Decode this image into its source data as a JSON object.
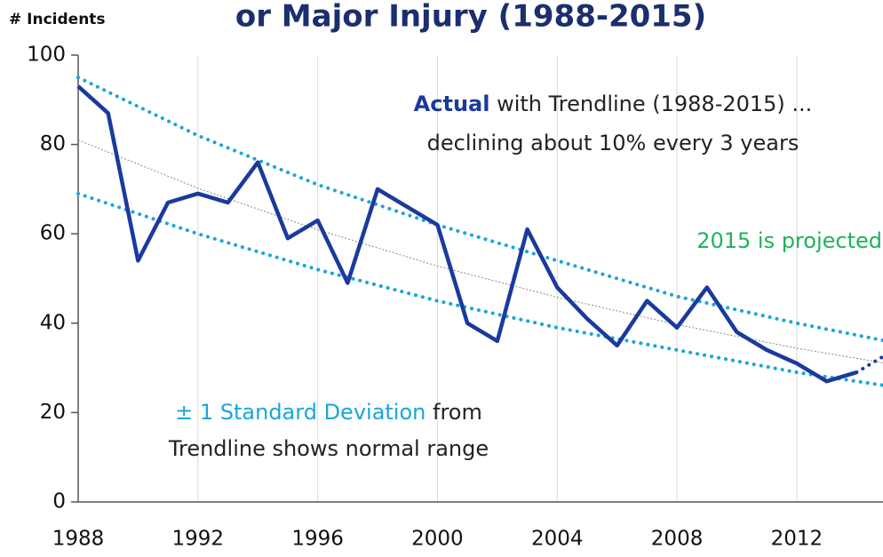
{
  "chart_data": {
    "type": "line",
    "title": "or Major Injury (1988-2015)",
    "y_label": "# Incidents",
    "xlim": [
      1988,
      2015
    ],
    "ylim": [
      0,
      100
    ],
    "xticks": [
      1988,
      1992,
      1996,
      2000,
      2004,
      2008,
      2012
    ],
    "yticks": [
      0,
      20,
      40,
      60,
      80,
      100
    ],
    "grid": "x",
    "series": [
      {
        "name": "Actual",
        "color": "#1a3a9c",
        "style": "solid",
        "x": [
          1988,
          1989,
          1990,
          1991,
          1992,
          1993,
          1994,
          1995,
          1996,
          1997,
          1998,
          1999,
          2000,
          2001,
          2002,
          2003,
          2004,
          2005,
          2006,
          2007,
          2008,
          2009,
          2010,
          2011,
          2012,
          2013,
          2014
        ],
        "values": [
          93,
          87,
          54,
          67,
          69,
          67,
          76,
          59,
          63,
          49,
          70,
          66,
          62,
          40,
          36,
          61,
          48,
          41,
          35,
          45,
          39,
          48,
          38,
          34,
          31,
          27,
          29
        ]
      },
      {
        "name": "Projected",
        "color": "#1a3a9c",
        "style": "dotted",
        "x": [
          2014,
          2015
        ],
        "values": [
          29,
          33
        ]
      },
      {
        "name": "Trendline",
        "color": "#888888",
        "style": "thin",
        "x": [
          1988,
          1992,
          1996,
          2000,
          2004,
          2008,
          2012,
          2015
        ],
        "values": [
          81,
          70.2,
          60.9,
          52.8,
          45.8,
          39.7,
          34.4,
          31
        ]
      },
      {
        "name": "+1 SD",
        "color": "#1aa6d6",
        "style": "dotted",
        "x": [
          1988,
          1992,
          1996,
          2000,
          2004,
          2008,
          2012,
          2015
        ],
        "values": [
          95,
          82,
          71,
          62,
          54,
          46,
          40,
          36
        ]
      },
      {
        "name": "-1 SD",
        "color": "#1aa6d6",
        "style": "dotted",
        "x": [
          1988,
          1992,
          1996,
          2000,
          2004,
          2008,
          2012,
          2015
        ],
        "values": [
          69,
          60,
          52,
          45,
          39,
          34,
          29,
          26
        ]
      }
    ],
    "annotations": [
      {
        "parts": [
          {
            "text": "Actual",
            "color": "#1a3a9c",
            "bold": true
          },
          {
            "text": " with Trendline (1988-2015) ...",
            "color": "#222222",
            "bold": false
          }
        ]
      },
      {
        "parts": [
          {
            "text": "declining about 10% every 3 years",
            "color": "#222222",
            "bold": false
          }
        ]
      },
      {
        "parts": [
          {
            "text": "2015 is projected",
            "color": "#1fb35a",
            "bold": false
          }
        ]
      },
      {
        "parts": [
          {
            "text": "± 1 Standard Deviation",
            "color": "#1aa6d6",
            "bold": false
          },
          {
            "text": " from",
            "color": "#222222",
            "bold": false
          }
        ]
      },
      {
        "parts": [
          {
            "text": "Trendline shows normal range",
            "color": "#222222",
            "bold": false
          }
        ]
      }
    ]
  }
}
